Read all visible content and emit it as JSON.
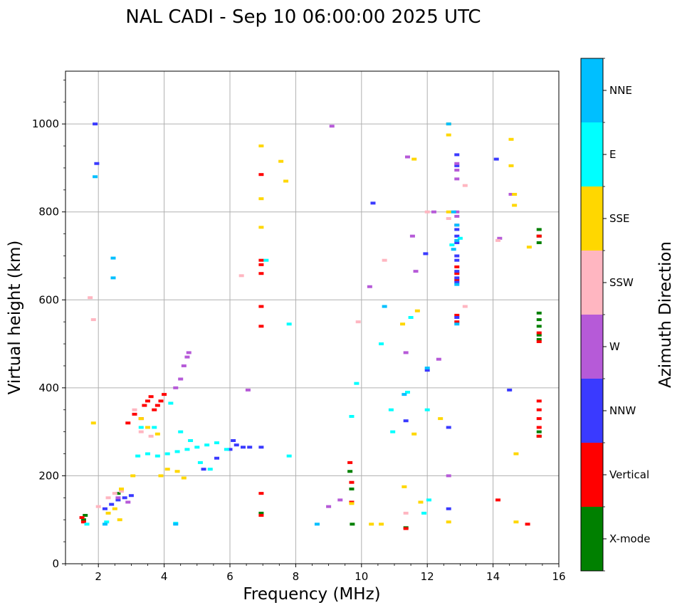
{
  "chart_data": {
    "type": "scatter",
    "title": "NAL CADI - Sep 10 06:00:00 2025 UTC",
    "xlabel": "Frequency (MHz)",
    "ylabel": "Virtual height (km)",
    "xlim": [
      1,
      16
    ],
    "ylim": [
      0,
      1120
    ],
    "xticks": [
      "2",
      "4",
      "6",
      "8",
      "10",
      "12",
      "14",
      "16"
    ],
    "yticks": [
      "0",
      "200",
      "400",
      "600",
      "800",
      "1000"
    ],
    "grid": true,
    "colorbar": {
      "label": "Azimuth Direction",
      "categories": [
        {
          "name": "X-mode",
          "color": "#008000"
        },
        {
          "name": "Vertical",
          "color": "#ff0000"
        },
        {
          "name": "NNW",
          "color": "#3a3aff"
        },
        {
          "name": "W",
          "color": "#b65ad8"
        },
        {
          "name": "SSW",
          "color": "#ffb6c1"
        },
        {
          "name": "SSE",
          "color": "#ffd700"
        },
        {
          "name": "E",
          "color": "#00ffff"
        },
        {
          "name": "NNE",
          "color": "#00bfff"
        }
      ]
    },
    "series": [
      {
        "name": "X-mode",
        "points": [
          [
            1.55,
            100
          ],
          [
            1.6,
            110
          ],
          [
            2.6,
            160
          ],
          [
            6.95,
            115
          ],
          [
            9.65,
            210
          ],
          [
            9.7,
            170
          ],
          [
            9.72,
            90
          ],
          [
            11.35,
            82
          ],
          [
            15.4,
            290
          ],
          [
            15.4,
            300
          ],
          [
            15.4,
            510
          ],
          [
            15.4,
            520
          ],
          [
            15.4,
            540
          ],
          [
            15.4,
            555
          ],
          [
            15.4,
            570
          ],
          [
            15.4,
            730
          ],
          [
            15.4,
            745
          ],
          [
            15.4,
            760
          ]
        ]
      },
      {
        "name": "Vertical",
        "points": [
          [
            1.5,
            105
          ],
          [
            1.55,
            95
          ],
          [
            2.9,
            320
          ],
          [
            3.1,
            340
          ],
          [
            3.3,
            330
          ],
          [
            3.4,
            360
          ],
          [
            3.5,
            370
          ],
          [
            3.6,
            380
          ],
          [
            3.7,
            350
          ],
          [
            3.8,
            360
          ],
          [
            3.9,
            370
          ],
          [
            4.0,
            385
          ],
          [
            6.95,
            110
          ],
          [
            6.95,
            160
          ],
          [
            6.95,
            540
          ],
          [
            6.95,
            585
          ],
          [
            6.95,
            660
          ],
          [
            6.95,
            680
          ],
          [
            6.95,
            690
          ],
          [
            6.95,
            885
          ],
          [
            9.65,
            230
          ],
          [
            9.7,
            185
          ],
          [
            9.7,
            140
          ],
          [
            11.35,
            80
          ],
          [
            12.9,
            550
          ],
          [
            12.9,
            565
          ],
          [
            12.9,
            645
          ],
          [
            12.9,
            660
          ],
          [
            12.9,
            675
          ],
          [
            14.15,
            145
          ],
          [
            15.05,
            90
          ],
          [
            15.4,
            290
          ],
          [
            15.4,
            310
          ],
          [
            15.4,
            330
          ],
          [
            15.4,
            350
          ],
          [
            15.4,
            370
          ],
          [
            15.4,
            505
          ],
          [
            15.4,
            525
          ],
          [
            15.4,
            745
          ]
        ]
      },
      {
        "name": "NNW",
        "points": [
          [
            2.2,
            125
          ],
          [
            2.4,
            135
          ],
          [
            2.6,
            145
          ],
          [
            2.8,
            150
          ],
          [
            3.0,
            155
          ],
          [
            5.2,
            215
          ],
          [
            5.6,
            240
          ],
          [
            6.0,
            260
          ],
          [
            6.1,
            280
          ],
          [
            6.2,
            270
          ],
          [
            6.4,
            265
          ],
          [
            6.6,
            265
          ],
          [
            6.95,
            265
          ],
          [
            1.9,
            1000
          ],
          [
            1.95,
            910
          ],
          [
            10.35,
            820
          ],
          [
            12.9,
            930
          ],
          [
            12.9,
            905
          ],
          [
            12.9,
            760
          ],
          [
            12.9,
            745
          ],
          [
            12.9,
            730
          ],
          [
            12.9,
            700
          ],
          [
            12.9,
            690
          ],
          [
            12.9,
            665
          ],
          [
            12.9,
            650
          ],
          [
            12.9,
            640
          ],
          [
            12.9,
            560
          ],
          [
            11.35,
            325
          ],
          [
            12.65,
            310
          ],
          [
            12.65,
            125
          ],
          [
            14.1,
            920
          ],
          [
            14.5,
            395
          ],
          [
            11.95,
            705
          ],
          [
            12.0,
            440
          ]
        ]
      },
      {
        "name": "W",
        "points": [
          [
            4.35,
            400
          ],
          [
            4.5,
            420
          ],
          [
            4.6,
            450
          ],
          [
            4.7,
            470
          ],
          [
            4.75,
            480
          ],
          [
            2.6,
            150
          ],
          [
            2.9,
            140
          ],
          [
            9.1,
            995
          ],
          [
            12.9,
            875
          ],
          [
            12.9,
            895
          ],
          [
            12.9,
            910
          ],
          [
            12.9,
            770
          ],
          [
            12.9,
            790
          ],
          [
            12.9,
            800
          ],
          [
            11.4,
            925
          ],
          [
            11.55,
            745
          ],
          [
            11.65,
            665
          ],
          [
            12.35,
            465
          ],
          [
            12.65,
            200
          ],
          [
            14.55,
            840
          ],
          [
            14.2,
            740
          ],
          [
            6.55,
            395
          ],
          [
            9.35,
            145
          ],
          [
            9.0,
            130
          ],
          [
            10.25,
            630
          ],
          [
            12.2,
            800
          ],
          [
            11.35,
            480
          ]
        ]
      },
      {
        "name": "SSW",
        "points": [
          [
            2.0,
            130
          ],
          [
            2.3,
            150
          ],
          [
            2.5,
            160
          ],
          [
            2.7,
            165
          ],
          [
            3.1,
            350
          ],
          [
            3.3,
            300
          ],
          [
            3.6,
            290
          ],
          [
            1.75,
            605
          ],
          [
            1.85,
            555
          ],
          [
            12.65,
            785
          ],
          [
            13.15,
            860
          ],
          [
            13.15,
            585
          ],
          [
            14.15,
            735
          ],
          [
            12.0,
            800
          ],
          [
            9.9,
            550
          ],
          [
            10.7,
            690
          ],
          [
            6.35,
            655
          ],
          [
            11.35,
            115
          ]
        ]
      },
      {
        "name": "SSE",
        "points": [
          [
            2.3,
            115
          ],
          [
            2.5,
            125
          ],
          [
            2.7,
            170
          ],
          [
            3.05,
            200
          ],
          [
            3.3,
            330
          ],
          [
            3.5,
            310
          ],
          [
            3.8,
            295
          ],
          [
            3.9,
            200
          ],
          [
            4.1,
            215
          ],
          [
            4.4,
            210
          ],
          [
            4.6,
            195
          ],
          [
            2.65,
            100
          ],
          [
            1.85,
            320
          ],
          [
            6.95,
            950
          ],
          [
            6.95,
            830
          ],
          [
            6.95,
            765
          ],
          [
            12.65,
            1000
          ],
          [
            12.65,
            975
          ],
          [
            12.65,
            800
          ],
          [
            14.55,
            965
          ],
          [
            14.55,
            905
          ],
          [
            14.65,
            815
          ],
          [
            14.65,
            840
          ],
          [
            15.1,
            720
          ],
          [
            14.7,
            250
          ],
          [
            14.7,
            95
          ],
          [
            12.65,
            95
          ],
          [
            11.7,
            575
          ],
          [
            11.6,
            920
          ],
          [
            11.25,
            545
          ],
          [
            10.3,
            90
          ],
          [
            10.6,
            90
          ],
          [
            11.8,
            140
          ],
          [
            11.6,
            295
          ],
          [
            11.3,
            175
          ],
          [
            12.4,
            330
          ],
          [
            7.7,
            870
          ],
          [
            7.55,
            915
          ],
          [
            9.7,
            137
          ]
        ]
      },
      {
        "name": "E",
        "points": [
          [
            3.2,
            245
          ],
          [
            3.5,
            250
          ],
          [
            3.8,
            245
          ],
          [
            4.1,
            250
          ],
          [
            4.4,
            255
          ],
          [
            4.7,
            260
          ],
          [
            5.0,
            265
          ],
          [
            5.3,
            270
          ],
          [
            5.6,
            275
          ],
          [
            5.9,
            260
          ],
          [
            4.5,
            300
          ],
          [
            4.8,
            280
          ],
          [
            5.1,
            230
          ],
          [
            5.4,
            215
          ],
          [
            3.3,
            310
          ],
          [
            3.7,
            310
          ],
          [
            4.2,
            365
          ],
          [
            2.25,
            95
          ],
          [
            4.35,
            92
          ],
          [
            1.65,
            90
          ],
          [
            7.1,
            690
          ],
          [
            7.8,
            545
          ],
          [
            7.8,
            245
          ],
          [
            11.5,
            560
          ],
          [
            11.9,
            115
          ],
          [
            12.0,
            350
          ],
          [
            12.05,
            145
          ],
          [
            10.9,
            350
          ],
          [
            10.95,
            300
          ],
          [
            10.6,
            500
          ],
          [
            11.4,
            390
          ],
          [
            12.75,
            725
          ],
          [
            13.0,
            740
          ],
          [
            9.85,
            410
          ],
          [
            9.7,
            335
          ]
        ]
      },
      {
        "name": "NNE",
        "points": [
          [
            1.9,
            880
          ],
          [
            2.45,
            650
          ],
          [
            2.45,
            695
          ],
          [
            2.2,
            90
          ],
          [
            4.35,
            90
          ],
          [
            12.8,
            800
          ],
          [
            12.9,
            770
          ],
          [
            12.9,
            735
          ],
          [
            12.8,
            715
          ],
          [
            12.9,
            635
          ],
          [
            12.65,
            1000
          ],
          [
            8.65,
            90
          ],
          [
            10.7,
            585
          ],
          [
            12.0,
            445
          ],
          [
            12.9,
            545
          ],
          [
            11.3,
            385
          ]
        ]
      }
    ]
  }
}
